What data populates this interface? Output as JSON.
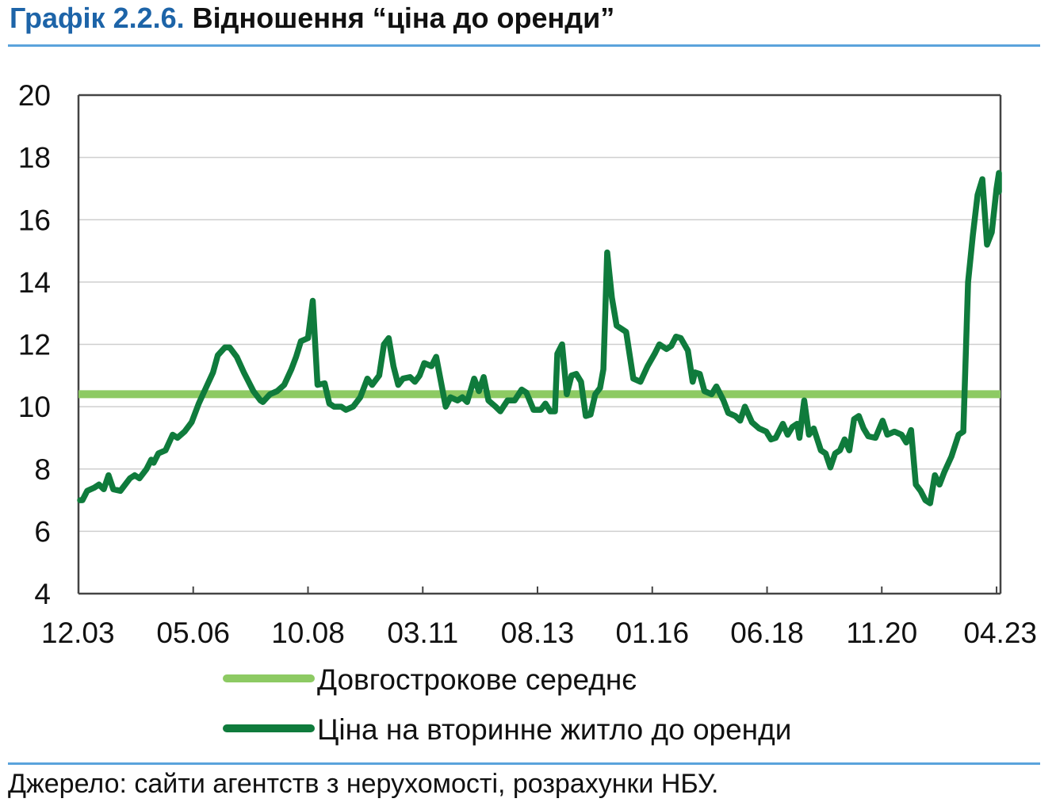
{
  "header": {
    "figure_number": "Графік 2.2.6.",
    "figure_title": "Відношення “ціна до оренди”"
  },
  "footer": {
    "source": "Джерело: сайти агентств з нерухомості, розрахунки НБУ."
  },
  "colors": {
    "accent_rule": "#5aa3dc",
    "figure_number": "#1d64a8",
    "long_term_average": "#8dca63",
    "price_to_rent": "#0f7b3c",
    "grid": "#cfcfcf",
    "axis": "#444444"
  },
  "chart_data": {
    "type": "line",
    "title": "Відношення “ціна до оренди”",
    "ylim": [
      4,
      20
    ],
    "yticks": [
      "4",
      "6",
      "8",
      "10",
      "12",
      "14",
      "16",
      "18",
      "20"
    ],
    "xtick_labels": [
      "12.03",
      "05.06",
      "10.08",
      "03.11",
      "08.13",
      "01.16",
      "06.18",
      "11.20",
      "04.23"
    ],
    "xtick_positions": [
      2003.917,
      2006.333,
      2008.75,
      2011.167,
      2013.583,
      2016.0,
      2018.417,
      2020.833,
      2023.25
    ],
    "xlim": [
      2003.917,
      2023.333
    ],
    "grid": "horizontal",
    "legend_placement": "bottom",
    "series": [
      {
        "name": "Довгострокове середнє",
        "style": "flat",
        "points": [
          [
            2003.917,
            10.4
          ],
          [
            2023.333,
            10.4
          ]
        ]
      },
      {
        "name": "Ціна на вторинне житло до оренди",
        "style": "line",
        "points": [
          [
            2003.917,
            7.0
          ],
          [
            2004.0,
            7.0
          ],
          [
            2004.1,
            7.3
          ],
          [
            2004.25,
            7.4
          ],
          [
            2004.35,
            7.5
          ],
          [
            2004.45,
            7.35
          ],
          [
            2004.55,
            7.8
          ],
          [
            2004.65,
            7.35
          ],
          [
            2004.8,
            7.3
          ],
          [
            2005.0,
            7.7
          ],
          [
            2005.1,
            7.8
          ],
          [
            2005.2,
            7.7
          ],
          [
            2005.35,
            8.0
          ],
          [
            2005.45,
            8.3
          ],
          [
            2005.5,
            8.2
          ],
          [
            2005.6,
            8.5
          ],
          [
            2005.75,
            8.6
          ],
          [
            2005.9,
            9.1
          ],
          [
            2006.0,
            9.0
          ],
          [
            2006.15,
            9.2
          ],
          [
            2006.3,
            9.5
          ],
          [
            2006.45,
            10.1
          ],
          [
            2006.6,
            10.6
          ],
          [
            2006.75,
            11.1
          ],
          [
            2006.85,
            11.65
          ],
          [
            2007.0,
            11.9
          ],
          [
            2007.1,
            11.9
          ],
          [
            2007.25,
            11.6
          ],
          [
            2007.4,
            11.1
          ],
          [
            2007.5,
            10.8
          ],
          [
            2007.6,
            10.5
          ],
          [
            2007.75,
            10.2
          ],
          [
            2007.8,
            10.15
          ],
          [
            2007.95,
            10.4
          ],
          [
            2008.1,
            10.5
          ],
          [
            2008.25,
            10.7
          ],
          [
            2008.4,
            11.2
          ],
          [
            2008.5,
            11.6
          ],
          [
            2008.6,
            12.1
          ],
          [
            2008.75,
            12.2
          ],
          [
            2008.85,
            13.4
          ],
          [
            2008.95,
            10.7
          ],
          [
            2009.1,
            10.75
          ],
          [
            2009.2,
            10.1
          ],
          [
            2009.3,
            10.0
          ],
          [
            2009.45,
            10.0
          ],
          [
            2009.55,
            9.9
          ],
          [
            2009.7,
            10.0
          ],
          [
            2009.85,
            10.3
          ],
          [
            2010.0,
            10.9
          ],
          [
            2010.1,
            10.7
          ],
          [
            2010.25,
            11.0
          ],
          [
            2010.35,
            12.0
          ],
          [
            2010.45,
            12.2
          ],
          [
            2010.55,
            11.3
          ],
          [
            2010.65,
            10.7
          ],
          [
            2010.75,
            10.9
          ],
          [
            2010.9,
            10.95
          ],
          [
            2011.0,
            10.8
          ],
          [
            2011.1,
            11.0
          ],
          [
            2011.2,
            11.4
          ],
          [
            2011.35,
            11.3
          ],
          [
            2011.45,
            11.6
          ],
          [
            2011.55,
            10.8
          ],
          [
            2011.65,
            10.0
          ],
          [
            2011.75,
            10.3
          ],
          [
            2011.9,
            10.2
          ],
          [
            2012.0,
            10.3
          ],
          [
            2012.1,
            10.15
          ],
          [
            2012.25,
            10.9
          ],
          [
            2012.35,
            10.5
          ],
          [
            2012.45,
            10.95
          ],
          [
            2012.55,
            10.2
          ],
          [
            2012.7,
            10.0
          ],
          [
            2012.8,
            9.85
          ],
          [
            2012.95,
            10.2
          ],
          [
            2013.1,
            10.2
          ],
          [
            2013.25,
            10.55
          ],
          [
            2013.35,
            10.45
          ],
          [
            2013.5,
            9.9
          ],
          [
            2013.65,
            9.9
          ],
          [
            2013.75,
            10.1
          ],
          [
            2013.85,
            9.85
          ],
          [
            2013.95,
            9.85
          ],
          [
            2014.0,
            11.7
          ],
          [
            2014.1,
            12.0
          ],
          [
            2014.2,
            10.4
          ],
          [
            2014.3,
            11.0
          ],
          [
            2014.4,
            11.05
          ],
          [
            2014.5,
            10.8
          ],
          [
            2014.6,
            9.7
          ],
          [
            2014.7,
            9.75
          ],
          [
            2014.8,
            10.4
          ],
          [
            2014.9,
            10.6
          ],
          [
            2014.97,
            11.2
          ],
          [
            2015.05,
            14.95
          ],
          [
            2015.15,
            13.5
          ],
          [
            2015.25,
            12.6
          ],
          [
            2015.35,
            12.5
          ],
          [
            2015.45,
            12.4
          ],
          [
            2015.6,
            10.9
          ],
          [
            2015.75,
            10.8
          ],
          [
            2015.9,
            11.3
          ],
          [
            2016.05,
            11.7
          ],
          [
            2016.15,
            12.0
          ],
          [
            2016.3,
            11.85
          ],
          [
            2016.4,
            11.95
          ],
          [
            2016.5,
            12.25
          ],
          [
            2016.6,
            12.2
          ],
          [
            2016.75,
            11.8
          ],
          [
            2016.85,
            10.8
          ],
          [
            2016.9,
            11.1
          ],
          [
            2017.0,
            11.05
          ],
          [
            2017.1,
            10.5
          ],
          [
            2017.25,
            10.4
          ],
          [
            2017.35,
            10.65
          ],
          [
            2017.5,
            10.2
          ],
          [
            2017.6,
            9.8
          ],
          [
            2017.75,
            9.7
          ],
          [
            2017.85,
            9.55
          ],
          [
            2017.95,
            10.0
          ],
          [
            2018.1,
            9.5
          ],
          [
            2018.25,
            9.3
          ],
          [
            2018.4,
            9.2
          ],
          [
            2018.5,
            8.95
          ],
          [
            2018.6,
            9.0
          ],
          [
            2018.75,
            9.45
          ],
          [
            2018.85,
            9.1
          ],
          [
            2018.95,
            9.35
          ],
          [
            2019.05,
            9.45
          ],
          [
            2019.1,
            9.0
          ],
          [
            2019.2,
            10.2
          ],
          [
            2019.3,
            9.1
          ],
          [
            2019.4,
            9.3
          ],
          [
            2019.55,
            8.6
          ],
          [
            2019.65,
            8.5
          ],
          [
            2019.75,
            8.05
          ],
          [
            2019.85,
            8.5
          ],
          [
            2019.95,
            8.6
          ],
          [
            2020.05,
            8.95
          ],
          [
            2020.15,
            8.6
          ],
          [
            2020.25,
            9.6
          ],
          [
            2020.35,
            9.7
          ],
          [
            2020.45,
            9.3
          ],
          [
            2020.55,
            9.05
          ],
          [
            2020.7,
            9.0
          ],
          [
            2020.85,
            9.55
          ],
          [
            2020.95,
            9.1
          ],
          [
            2021.1,
            9.2
          ],
          [
            2021.25,
            9.1
          ],
          [
            2021.35,
            8.85
          ],
          [
            2021.45,
            9.25
          ],
          [
            2021.55,
            7.5
          ],
          [
            2021.65,
            7.3
          ],
          [
            2021.75,
            7.0
          ],
          [
            2021.85,
            6.9
          ],
          [
            2021.95,
            7.8
          ],
          [
            2022.05,
            7.5
          ],
          [
            2022.15,
            7.9
          ],
          [
            2022.3,
            8.4
          ],
          [
            2022.45,
            9.1
          ],
          [
            2022.55,
            9.2
          ],
          [
            2022.65,
            14.0
          ],
          [
            2022.75,
            15.5
          ],
          [
            2022.85,
            16.8
          ],
          [
            2022.95,
            17.3
          ],
          [
            2023.05,
            15.2
          ],
          [
            2023.15,
            15.6
          ],
          [
            2023.25,
            17.0
          ],
          [
            2023.35,
            17.5
          ],
          [
            2023.45,
            17.1
          ],
          [
            2023.55,
            17.0
          ],
          [
            2023.6,
            17.4
          ],
          [
            2023.7,
            17.2
          ],
          [
            2023.75,
            16.9
          ]
        ]
      }
    ]
  }
}
